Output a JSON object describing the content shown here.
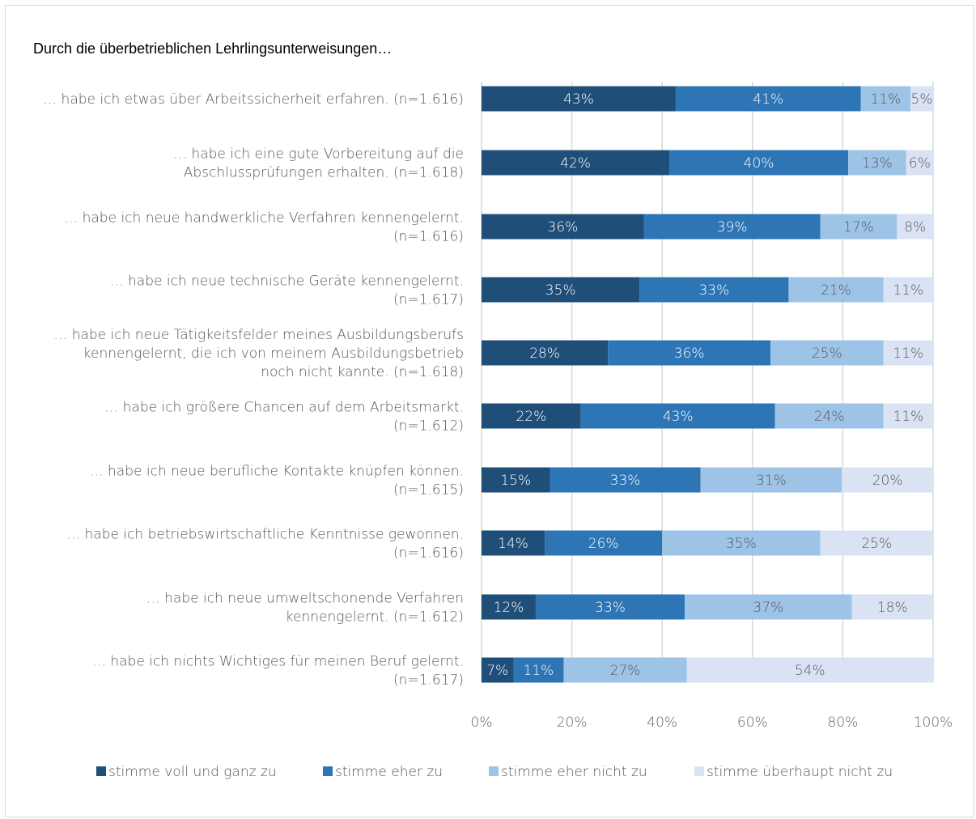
{
  "chart_data": {
    "type": "bar",
    "orientation": "horizontal",
    "stacked": "percent",
    "title": "Durch die überbetrieblichen Lehrlingsunterweisungen…",
    "categories": [
      [
        "… habe ich etwas über Arbeitssicherheit erfahren. (n=1.616)"
      ],
      [
        "… habe ich eine gute Vorbereitung auf die",
        "Abschlussprüfungen erhalten. (n=1.618)"
      ],
      [
        "… habe ich neue handwerkliche Verfahren kennengelernt.",
        "(n=1.616)"
      ],
      [
        "… habe ich neue technische Geräte kennengelernt.",
        "(n=1.617)"
      ],
      [
        "… habe ich neue Tätigkeitsfelder meines Ausbildungsberufs",
        "kennengelernt, die ich von meinem Ausbildungsbetrieb",
        "noch nicht kannte. (n=1.618)"
      ],
      [
        "… habe ich größere Chancen auf dem Arbeitsmarkt.",
        "(n=1.612)"
      ],
      [
        "… habe ich neue berufliche Kontakte knüpfen können.",
        "(n=1.615)"
      ],
      [
        "… habe ich betriebswirtschaftliche Kenntnisse gewonnen.",
        "(n=1.616)"
      ],
      [
        "… habe ich neue umweltschonende Verfahren",
        "kennengelernt. (n=1.612)"
      ],
      [
        "… habe ich nichts Wichtiges für meinen Beruf gelernt.",
        "(n=1.617)"
      ]
    ],
    "series": [
      {
        "name": "stimme voll und ganz zu",
        "color": "#1f4e79",
        "label_color": "#ffffff",
        "values": [
          43,
          42,
          36,
          35,
          28,
          22,
          15,
          14,
          12,
          7
        ]
      },
      {
        "name": "stimme eher zu",
        "color": "#2e75b6",
        "label_color": "#ffffff",
        "values": [
          41,
          40,
          39,
          33,
          36,
          43,
          33,
          26,
          33,
          11
        ]
      },
      {
        "name": "stimme eher nicht zu",
        "color": "#9dc3e6",
        "label_color": "#595959",
        "values": [
          11,
          13,
          17,
          21,
          25,
          24,
          31,
          35,
          37,
          27
        ]
      },
      {
        "name": "stimme überhaupt nicht zu",
        "color": "#dae3f3",
        "label_color": "#595959",
        "values": [
          5,
          6,
          8,
          11,
          11,
          11,
          20,
          25,
          18,
          54
        ]
      }
    ],
    "xlim": [
      0,
      100
    ],
    "x_ticks": [
      "0%",
      "20%",
      "40%",
      "60%",
      "80%",
      "100%"
    ],
    "grid": true,
    "legend": "bottom"
  }
}
